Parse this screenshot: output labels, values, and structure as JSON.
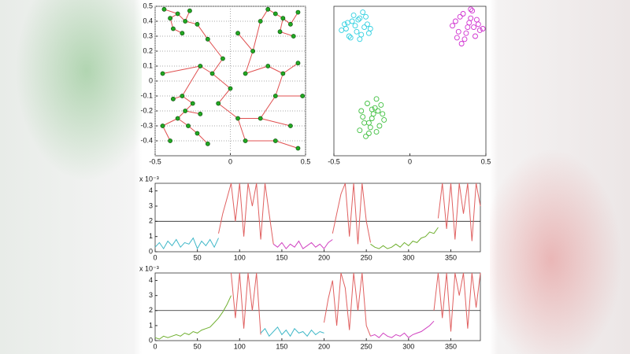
{
  "chart_data": [
    {
      "type": "graph",
      "node_color": "#22a822",
      "edge_color": "#e05050",
      "grid": true,
      "xlim": [
        -0.5,
        0.5
      ],
      "xticks": [
        -0.5,
        0,
        0.5
      ],
      "ylim": [
        -0.5,
        0.5
      ],
      "yticks": [
        -0.4,
        -0.3,
        -0.2,
        -0.1,
        0,
        0.1,
        0.2,
        0.3,
        0.4,
        0.5
      ],
      "x": [
        -0.4,
        -0.35,
        -0.3,
        -0.38,
        -0.27,
        -0.44,
        -0.32,
        -0.22,
        0.35,
        0.4,
        0.3,
        0.45,
        0.33,
        0.25,
        0.42,
        0.2,
        -0.3,
        -0.25,
        -0.35,
        -0.28,
        -0.2,
        -0.38,
        -0.22,
        -0.32,
        -0.15,
        -0.05,
        -0.12,
        -0.2,
        -0.45,
        -0.4,
        -0.15,
        0.05,
        0.0,
        0.1,
        0.15,
        0.05,
        0.25,
        0.35,
        0.45,
        0.3,
        0.2,
        0.4,
        0.3,
        0.1,
        0.45,
        -0.08,
        -0.45,
        0.48
      ],
      "y": [
        0.42,
        0.45,
        0.4,
        0.35,
        0.47,
        0.48,
        0.32,
        0.38,
        0.42,
        0.38,
        0.45,
        0.46,
        0.33,
        0.48,
        0.3,
        0.4,
        -0.2,
        -0.15,
        -0.25,
        -0.3,
        -0.22,
        -0.12,
        -0.35,
        -0.1,
        0.28,
        0.15,
        0.05,
        0.1,
        0.05,
        -0.4,
        -0.42,
        -0.25,
        -0.05,
        0.05,
        0.2,
        0.32,
        0.1,
        0.05,
        0.12,
        -0.1,
        -0.25,
        -0.3,
        -0.4,
        -0.4,
        -0.45,
        -0.15,
        -0.3,
        -0.1
      ],
      "edges": [
        [
          0,
          1
        ],
        [
          1,
          2
        ],
        [
          2,
          4
        ],
        [
          0,
          3
        ],
        [
          3,
          6
        ],
        [
          2,
          7
        ],
        [
          1,
          5
        ],
        [
          7,
          24
        ],
        [
          24,
          25
        ],
        [
          25,
          26
        ],
        [
          26,
          27
        ],
        [
          27,
          23
        ],
        [
          27,
          28
        ],
        [
          23,
          21
        ],
        [
          23,
          17
        ],
        [
          17,
          16
        ],
        [
          16,
          18
        ],
        [
          18,
          19
        ],
        [
          19,
          22
        ],
        [
          16,
          20
        ],
        [
          22,
          30
        ],
        [
          18,
          46
        ],
        [
          46,
          29
        ],
        [
          26,
          32
        ],
        [
          32,
          45
        ],
        [
          45,
          31
        ],
        [
          31,
          43
        ],
        [
          43,
          42
        ],
        [
          42,
          44
        ],
        [
          31,
          40
        ],
        [
          40,
          41
        ],
        [
          40,
          39
        ],
        [
          39,
          37
        ],
        [
          37,
          38
        ],
        [
          37,
          36
        ],
        [
          36,
          33
        ],
        [
          33,
          34
        ],
        [
          34,
          35
        ],
        [
          34,
          15
        ],
        [
          15,
          13
        ],
        [
          13,
          10
        ],
        [
          10,
          8
        ],
        [
          8,
          9
        ],
        [
          9,
          11
        ],
        [
          8,
          12
        ],
        [
          12,
          14
        ],
        [
          39,
          47
        ]
      ]
    },
    {
      "type": "scatter",
      "xlim": [
        -0.5,
        0.5
      ],
      "xticks": [
        -0.5,
        0,
        0.5
      ],
      "ylim": [
        -0.5,
        0.5
      ],
      "series": [
        {
          "color": "#30d0e0",
          "x": [
            -0.42,
            -0.38,
            -0.33,
            -0.28,
            -0.4,
            -0.35,
            -0.3,
            -0.45,
            -0.37,
            -0.32,
            -0.27,
            -0.41,
            -0.36,
            -0.31,
            -0.26,
            -0.39,
            -0.34,
            -0.29,
            -0.43,
            -0.33
          ],
          "y": [
            0.35,
            0.4,
            0.42,
            0.38,
            0.3,
            0.33,
            0.36,
            0.34,
            0.44,
            0.31,
            0.32,
            0.39,
            0.37,
            0.46,
            0.35,
            0.29,
            0.41,
            0.43,
            0.38,
            0.28
          ]
        },
        {
          "color": "#d030d0",
          "x": [
            0.3,
            0.35,
            0.4,
            0.45,
            0.32,
            0.38,
            0.43,
            0.28,
            0.36,
            0.41,
            0.46,
            0.33,
            0.39,
            0.44,
            0.31,
            0.37,
            0.42,
            0.34,
            0.4,
            0.48
          ],
          "y": [
            0.4,
            0.45,
            0.42,
            0.38,
            0.33,
            0.36,
            0.3,
            0.37,
            0.28,
            0.47,
            0.34,
            0.43,
            0.39,
            0.41,
            0.29,
            0.32,
            0.36,
            0.25,
            0.48,
            0.35
          ]
        },
        {
          "color": "#40c040",
          "x": [
            -0.32,
            -0.28,
            -0.23,
            -0.18,
            -0.3,
            -0.25,
            -0.2,
            -0.33,
            -0.27,
            -0.22,
            -0.17,
            -0.31,
            -0.26,
            -0.21,
            -0.29,
            -0.24,
            -0.19,
            -0.27,
            -0.22,
            -0.25
          ],
          "y": [
            -0.2,
            -0.15,
            -0.18,
            -0.22,
            -0.28,
            -0.25,
            -0.3,
            -0.33,
            -0.35,
            -0.12,
            -0.26,
            -0.24,
            -0.31,
            -0.2,
            -0.37,
            -0.22,
            -0.16,
            -0.28,
            -0.34,
            -0.19
          ]
        }
      ]
    },
    {
      "type": "line",
      "y_scale_note": "x 10⁻³",
      "hline": 2,
      "xlim": [
        0,
        385
      ],
      "xticks": [
        0,
        50,
        100,
        150,
        200,
        250,
        300,
        350
      ],
      "ylim": [
        0,
        4.5
      ],
      "yticks": [
        0,
        1,
        2,
        3,
        4
      ],
      "series": [
        {
          "color": "#40b8c8",
          "x": [
            0,
            5,
            10,
            15,
            20,
            25,
            30,
            35,
            40,
            45,
            50,
            55,
            60,
            65,
            70,
            75
          ],
          "values": [
            0.3,
            0.6,
            0.2,
            0.7,
            0.4,
            0.8,
            0.3,
            0.6,
            0.5,
            0.9,
            0.2,
            0.7,
            0.4,
            0.8,
            0.3,
            0.9
          ]
        },
        {
          "color": "#e06060",
          "x": [
            75,
            80,
            85,
            90,
            95,
            100,
            105,
            110,
            115,
            120,
            125,
            130,
            135,
            140
          ],
          "values": [
            1.2,
            2.5,
            3.5,
            4.5,
            2.0,
            4.5,
            1.0,
            4.5,
            3.0,
            4.5,
            0.8,
            4.5,
            2.5,
            0.5
          ]
        },
        {
          "color": "#d040c0",
          "x": [
            140,
            145,
            150,
            155,
            160,
            165,
            170,
            175,
            180,
            185,
            190,
            195,
            200,
            205,
            210
          ],
          "values": [
            0.5,
            0.3,
            0.6,
            0.2,
            0.5,
            0.3,
            0.7,
            0.2,
            0.4,
            0.6,
            0.3,
            0.5,
            0.2,
            0.6,
            0.8
          ]
        },
        {
          "color": "#e06060",
          "x": [
            210,
            215,
            220,
            225,
            230,
            235,
            240,
            245,
            250,
            255
          ],
          "values": [
            1.2,
            2.5,
            3.8,
            4.5,
            1.0,
            4.5,
            0.5,
            4.5,
            2.0,
            0.6
          ]
        },
        {
          "color": "#70b030",
          "x": [
            255,
            260,
            265,
            270,
            275,
            280,
            285,
            290,
            295,
            300,
            305,
            310,
            315,
            320,
            325,
            330,
            335
          ],
          "values": [
            0.5,
            0.3,
            0.2,
            0.4,
            0.2,
            0.3,
            0.5,
            0.3,
            0.6,
            0.4,
            0.7,
            0.6,
            0.9,
            1.0,
            1.3,
            1.2,
            1.6
          ]
        },
        {
          "color": "#e06060",
          "x": [
            335,
            340,
            345,
            350,
            355,
            360,
            365,
            370,
            375,
            380,
            385
          ],
          "values": [
            2.2,
            4.5,
            1.5,
            4.5,
            0.8,
            4.5,
            2.5,
            4.5,
            0.7,
            4.5,
            3.0
          ]
        }
      ]
    },
    {
      "type": "line",
      "y_scale_note": "x 10⁻³",
      "hline": 2,
      "xlim": [
        0,
        385
      ],
      "xticks": [
        0,
        50,
        100,
        150,
        200,
        250,
        300,
        350
      ],
      "ylim": [
        0,
        4.5
      ],
      "yticks": [
        0,
        1,
        2,
        3,
        4
      ],
      "series": [
        {
          "color": "#70b030",
          "x": [
            0,
            5,
            10,
            15,
            20,
            25,
            30,
            35,
            40,
            45,
            50,
            55,
            60,
            65,
            70,
            75,
            80,
            85,
            90
          ],
          "values": [
            0.2,
            0.1,
            0.3,
            0.2,
            0.3,
            0.4,
            0.3,
            0.5,
            0.4,
            0.6,
            0.5,
            0.7,
            0.8,
            0.9,
            1.2,
            1.5,
            1.9,
            2.4,
            3.0
          ]
        },
        {
          "color": "#e06060",
          "x": [
            90,
            95,
            100,
            105,
            110,
            115,
            120,
            125
          ],
          "values": [
            4.5,
            1.5,
            4.5,
            0.8,
            4.5,
            2.0,
            4.5,
            0.4
          ]
        },
        {
          "color": "#40b8c8",
          "x": [
            125,
            130,
            135,
            140,
            145,
            150,
            155,
            160,
            165,
            170,
            175,
            180,
            185,
            190,
            195,
            200
          ],
          "values": [
            0.5,
            0.8,
            0.3,
            0.6,
            0.9,
            0.4,
            0.7,
            0.3,
            0.8,
            0.5,
            0.6,
            0.3,
            0.7,
            0.4,
            0.6,
            0.5
          ]
        },
        {
          "color": "#e06060",
          "x": [
            200,
            205,
            210,
            215,
            220,
            225,
            230,
            235,
            240,
            245,
            250,
            255
          ],
          "values": [
            1.2,
            2.8,
            4.0,
            1.0,
            4.5,
            3.5,
            0.7,
            4.5,
            2.0,
            4.5,
            1.0,
            0.3
          ]
        },
        {
          "color": "#d040c0",
          "x": [
            255,
            260,
            265,
            270,
            275,
            280,
            285,
            290,
            295,
            300,
            305,
            310,
            315,
            320,
            325,
            330
          ],
          "values": [
            0.3,
            0.4,
            0.2,
            0.5,
            0.3,
            0.2,
            0.4,
            0.3,
            0.5,
            0.2,
            0.4,
            0.5,
            0.6,
            0.8,
            1.0,
            1.3
          ]
        },
        {
          "color": "#e06060",
          "x": [
            330,
            335,
            340,
            345,
            350,
            355,
            360,
            365,
            370,
            375,
            380,
            385
          ],
          "values": [
            2.0,
            4.5,
            1.5,
            4.5,
            0.6,
            4.5,
            3.0,
            4.5,
            0.8,
            4.5,
            2.2,
            4.5
          ]
        }
      ]
    }
  ]
}
